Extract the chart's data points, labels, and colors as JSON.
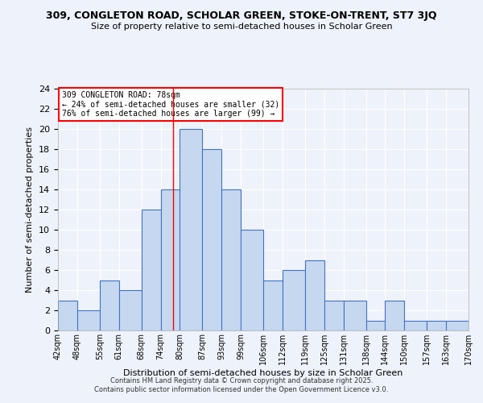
{
  "title1": "309, CONGLETON ROAD, SCHOLAR GREEN, STOKE-ON-TRENT, ST7 3JQ",
  "title2": "Size of property relative to semi-detached houses in Scholar Green",
  "xlabel": "Distribution of semi-detached houses by size in Scholar Green",
  "ylabel": "Number of semi-detached properties",
  "bins": [
    42,
    48,
    55,
    61,
    68,
    74,
    80,
    87,
    93,
    99,
    106,
    112,
    119,
    125,
    131,
    138,
    144,
    150,
    157,
    163,
    170
  ],
  "bin_labels": [
    "42sqm",
    "48sqm",
    "55sqm",
    "61sqm",
    "68sqm",
    "74sqm",
    "80sqm",
    "87sqm",
    "93sqm",
    "99sqm",
    "106sqm",
    "112sqm",
    "119sqm",
    "125sqm",
    "131sqm",
    "138sqm",
    "144sqm",
    "150sqm",
    "157sqm",
    "163sqm",
    "170sqm"
  ],
  "counts": [
    3,
    2,
    5,
    4,
    12,
    14,
    20,
    18,
    14,
    10,
    5,
    6,
    7,
    3,
    3,
    1,
    3,
    1,
    1,
    1
  ],
  "bar_color": "#c5d8f0",
  "bar_edge_color": "#4472c4",
  "bg_color": "#eef3fb",
  "grid_color": "#ffffff",
  "red_line_x": 78,
  "annotation_title": "309 CONGLETON ROAD: 78sqm",
  "annotation_line1": "← 24% of semi-detached houses are smaller (32)",
  "annotation_line2": "76% of semi-detached houses are larger (99) →",
  "ylim": [
    0,
    24
  ],
  "yticks": [
    0,
    2,
    4,
    6,
    8,
    10,
    12,
    14,
    16,
    18,
    20,
    22,
    24
  ],
  "footer1": "Contains HM Land Registry data © Crown copyright and database right 2025.",
  "footer2": "Contains public sector information licensed under the Open Government Licence v3.0."
}
